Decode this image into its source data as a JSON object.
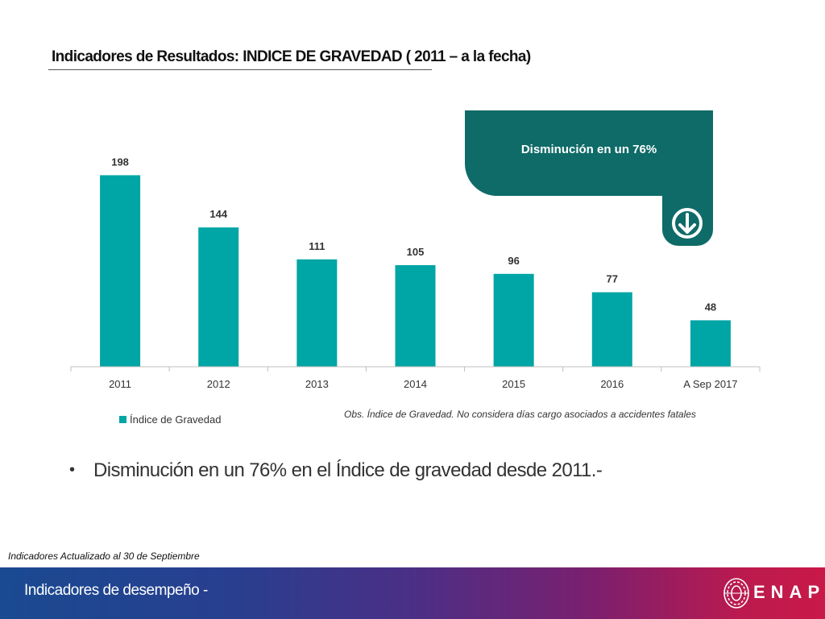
{
  "page": {
    "title": "Indicadores de Resultados: INDICE DE GRAVEDAD  ( 2011 – a la fecha)",
    "note": "Obs. Índice de Gravedad. No considera días cargo asociados a accidentes fatales",
    "bullet": "Disminución en un 76% en el Índice de gravedad  desde 2011.-",
    "bullet_symbol": "•",
    "updated": "Indicadores Actualizado al 30 de Septiembre",
    "footer_title": "Indicadores de desempeño -",
    "logo_text": "ENAP"
  },
  "callout": {
    "text": "Disminución en un 76%",
    "icon": "arrow-down-circle-icon",
    "color": "#0e6b68"
  },
  "chart_data": {
    "type": "bar",
    "categories": [
      "2011",
      "2012",
      "2013",
      "2014",
      "2015",
      "2016",
      "A Sep 2017"
    ],
    "series": [
      {
        "name": "Índice de Gravedad",
        "values": [
          198,
          144,
          111,
          105,
          96,
          77,
          48
        ],
        "color": "#00a5a5"
      }
    ],
    "data_labels": true,
    "ylim": [
      0,
      200
    ],
    "legend": "bottom-left",
    "grid": false
  },
  "colors": {
    "bar": "#00a5a5",
    "callout": "#0e6b68",
    "footer_start": "#1a4a91",
    "footer_end": "#c91948"
  }
}
